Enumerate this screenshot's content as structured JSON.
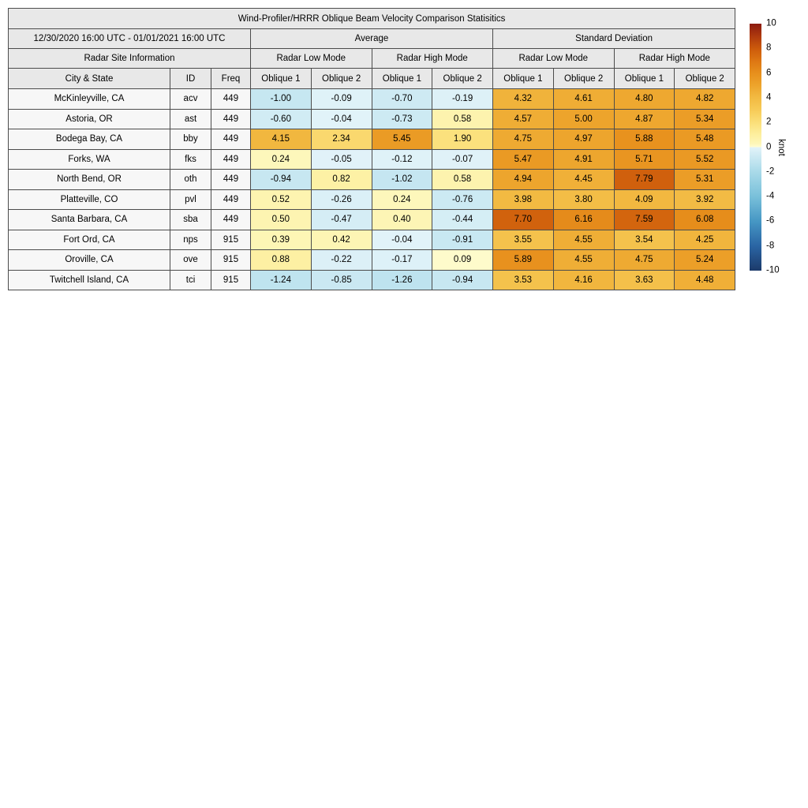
{
  "title": "Wind-Profiler/HRRR Oblique Beam Velocity Comparison Statisitics",
  "colors": {
    "page_bg": "#ffffff",
    "text": "#000000",
    "border": "#4c4c4c",
    "header_bg": "#e8e8e8",
    "label_bg": "#f7f7f7"
  },
  "chart_data": {
    "type": "heatmap",
    "title": "Wind-Profiler/HRRR Oblique Beam Velocity Comparison Statisitics",
    "date_range": "12/30/2020 16:00 UTC - 01/01/2021 16:00 UTC",
    "site_info_header": "Radar Site Information",
    "group_headers": [
      "Average",
      "Standard Deviation"
    ],
    "mode_headers": [
      "Radar Low Mode",
      "Radar High Mode",
      "Radar Low Mode",
      "Radar High Mode"
    ],
    "col_headers": {
      "city": "City & State",
      "id": "ID",
      "freq": "Freq"
    },
    "oblique_labels": [
      "Oblique 1",
      "Oblique 2"
    ],
    "value_columns": [
      "Average Radar Low Mode Oblique 1",
      "Average Radar Low Mode Oblique 2",
      "Average Radar High Mode Oblique 1",
      "Average Radar High Mode Oblique 2",
      "Standard Deviation Radar Low Mode Oblique 1",
      "Standard Deviation Radar Low Mode Oblique 2",
      "Standard Deviation Radar High Mode Oblique 1",
      "Standard Deviation Radar High Mode Oblique 2"
    ],
    "rows": [
      {
        "city": "McKinleyville, CA",
        "id": "acv",
        "freq": "449",
        "values": [
          -1.0,
          -0.09,
          -0.7,
          -0.19,
          4.32,
          4.61,
          4.8,
          4.82
        ]
      },
      {
        "city": "Astoria, OR",
        "id": "ast",
        "freq": "449",
        "values": [
          -0.6,
          -0.04,
          -0.73,
          0.58,
          4.57,
          5.0,
          4.87,
          5.34
        ]
      },
      {
        "city": "Bodega Bay, CA",
        "id": "bby",
        "freq": "449",
        "values": [
          4.15,
          2.34,
          5.45,
          1.9,
          4.75,
          4.97,
          5.88,
          5.48
        ]
      },
      {
        "city": "Forks, WA",
        "id": "fks",
        "freq": "449",
        "values": [
          0.24,
          -0.05,
          -0.12,
          -0.07,
          5.47,
          4.91,
          5.71,
          5.52
        ]
      },
      {
        "city": "North Bend, OR",
        "id": "oth",
        "freq": "449",
        "values": [
          -0.94,
          0.82,
          -1.02,
          0.58,
          4.94,
          4.45,
          7.79,
          5.31
        ]
      },
      {
        "city": "Platteville, CO",
        "id": "pvl",
        "freq": "449",
        "values": [
          0.52,
          -0.26,
          0.24,
          -0.76,
          3.98,
          3.8,
          4.09,
          3.92
        ]
      },
      {
        "city": "Santa Barbara, CA",
        "id": "sba",
        "freq": "449",
        "values": [
          0.5,
          -0.47,
          0.4,
          -0.44,
          7.7,
          6.16,
          7.59,
          6.08
        ]
      },
      {
        "city": "Fort Ord, CA",
        "id": "nps",
        "freq": "915",
        "values": [
          0.39,
          0.42,
          -0.04,
          -0.91,
          3.55,
          4.55,
          3.54,
          4.25
        ]
      },
      {
        "city": "Oroville, CA",
        "id": "ove",
        "freq": "915",
        "values": [
          0.88,
          -0.22,
          -0.17,
          0.09,
          5.89,
          4.55,
          4.75,
          5.24
        ]
      },
      {
        "city": "Twitchell Island, CA",
        "id": "tci",
        "freq": "915",
        "values": [
          -1.24,
          -0.85,
          -1.26,
          -0.94,
          3.53,
          4.16,
          3.63,
          4.48
        ]
      }
    ],
    "colorbar": {
      "label": "knot",
      "min": -10,
      "max": 10,
      "ticks": [
        10,
        8,
        6,
        4,
        2,
        0,
        -2,
        -4,
        -6,
        -8,
        -10
      ],
      "positive_stops": [
        [
          0,
          "#fffed4"
        ],
        [
          0.25,
          "#fdf7ba"
        ],
        [
          1,
          "#fdef9f"
        ],
        [
          2,
          "#fbdf79"
        ],
        [
          3,
          "#f7cb58"
        ],
        [
          4,
          "#f2ba42"
        ],
        [
          5,
          "#eda42c"
        ],
        [
          6,
          "#e78f1c"
        ],
        [
          7,
          "#dd7613"
        ],
        [
          8,
          "#cc5a0b"
        ],
        [
          9,
          "#ae390e"
        ],
        [
          10,
          "#8c1b10"
        ]
      ],
      "negative_stops": [
        [
          -10,
          "#1c3a6a"
        ],
        [
          -8,
          "#2a65a4"
        ],
        [
          -6,
          "#4697c4"
        ],
        [
          -4,
          "#79c0da"
        ],
        [
          -2,
          "#a9dae9"
        ],
        [
          0,
          "#e2f3f9"
        ]
      ]
    }
  }
}
